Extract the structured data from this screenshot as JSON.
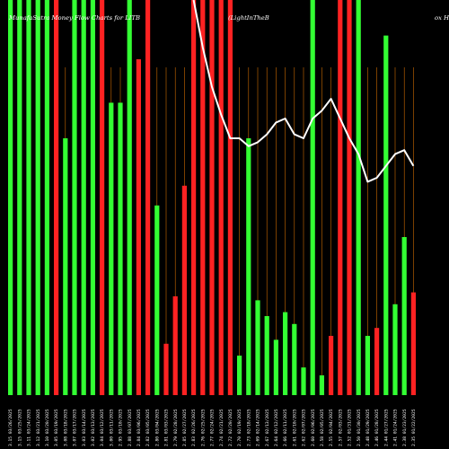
{
  "chart_data": {
    "type": "bar",
    "title": "MunafaSutra Money Flow Charts for LITB",
    "subtitle": "(LightInTheB",
    "title_suffix": "ox H",
    "colors": {
      "background": "#000000",
      "up": "#33ff33",
      "down": "#ff2222",
      "line": "#ffffff",
      "grid": "#cc6a00"
    },
    "ylim": [
      0,
      100
    ],
    "categories": [
      "3.15 03/26/2025",
      "3.15 03/25/2025",
      "3.11 03/24/2025",
      "3.12 03/21/2025",
      "3.10 03/20/2025",
      "3.05 03/19/2025",
      "3.08 03/18/2025",
      "3.07 03/17/2025",
      "3.03 03/14/2025",
      "3.02 03/13/2025",
      "3.04 03/12/2025",
      "3.00 03/11/2025",
      "2.95 03/10/2025",
      "2.88 03/07/2025",
      "2.84 03/06/2025",
      "2.82 03/05/2025",
      "2.80 03/04/2025",
      "2.81 03/03/2025",
      "2.79 02/28/2025",
      "2.85 02/27/2025",
      "2.83 02/26/2025",
      "2.76 02/25/2025",
      "2.77 02/24/2025",
      "2.74 02/21/2025",
      "2.72 02/20/2025",
      "2.70 02/19/2025",
      "2.73 02/18/2025",
      "2.69 02/14/2025",
      "2.67 02/13/2025",
      "2.64 02/12/2025",
      "2.66 02/11/2025",
      "2.61 02/10/2025",
      "2.62 02/07/2025",
      "2.60 02/06/2025",
      "2.58 02/05/2025",
      "2.55 02/04/2025",
      "2.57 02/03/2025",
      "2.52 01/31/2025",
      "2.50 01/30/2025",
      "2.48 01/29/2025",
      "2.46 01/28/2025",
      "2.44 01/27/2025",
      "2.41 01/24/2025",
      "2.38 01/23/2025",
      "2.35 01/22/2025"
    ],
    "bars": [
      {
        "value": 100,
        "color": "up"
      },
      {
        "value": 100,
        "color": "up"
      },
      {
        "value": 100,
        "color": "up"
      },
      {
        "value": 100,
        "color": "up"
      },
      {
        "value": 100,
        "color": "up"
      },
      {
        "value": 100,
        "color": "down"
      },
      {
        "value": 65,
        "color": "up"
      },
      {
        "value": 100,
        "color": "up"
      },
      {
        "value": 100,
        "color": "up"
      },
      {
        "value": 100,
        "color": "up"
      },
      {
        "value": 100,
        "color": "down"
      },
      {
        "value": 74,
        "color": "up"
      },
      {
        "value": 74,
        "color": "up"
      },
      {
        "value": 100,
        "color": "up"
      },
      {
        "value": 85,
        "color": "down"
      },
      {
        "value": 100,
        "color": "down"
      },
      {
        "value": 48,
        "color": "up"
      },
      {
        "value": 13,
        "color": "down"
      },
      {
        "value": 25,
        "color": "down"
      },
      {
        "value": 53,
        "color": "down"
      },
      {
        "value": 100,
        "color": "down"
      },
      {
        "value": 100,
        "color": "down"
      },
      {
        "value": 100,
        "color": "down"
      },
      {
        "value": 100,
        "color": "down"
      },
      {
        "value": 100,
        "color": "down"
      },
      {
        "value": 10,
        "color": "up"
      },
      {
        "value": 65,
        "color": "up"
      },
      {
        "value": 24,
        "color": "up"
      },
      {
        "value": 20,
        "color": "up"
      },
      {
        "value": 14,
        "color": "up"
      },
      {
        "value": 21,
        "color": "up"
      },
      {
        "value": 18,
        "color": "up"
      },
      {
        "value": 7,
        "color": "up"
      },
      {
        "value": 100,
        "color": "up"
      },
      {
        "value": 5,
        "color": "up"
      },
      {
        "value": 15,
        "color": "down"
      },
      {
        "value": 100,
        "color": "down"
      },
      {
        "value": 100,
        "color": "down"
      },
      {
        "value": 100,
        "color": "up"
      },
      {
        "value": 15,
        "color": "up"
      },
      {
        "value": 17,
        "color": "down"
      },
      {
        "value": 91,
        "color": "up"
      },
      {
        "value": 23,
        "color": "up"
      },
      {
        "value": 40,
        "color": "up"
      },
      {
        "value": 26,
        "color": "down"
      }
    ],
    "line": [
      null,
      null,
      null,
      null,
      null,
      null,
      null,
      null,
      null,
      null,
      null,
      null,
      null,
      null,
      null,
      null,
      null,
      null,
      null,
      null,
      100,
      88,
      78,
      71,
      65,
      65,
      63,
      64,
      66,
      69,
      70,
      66,
      65,
      70,
      72,
      75,
      70,
      65,
      61,
      54,
      55,
      58,
      61,
      62,
      58
    ]
  }
}
